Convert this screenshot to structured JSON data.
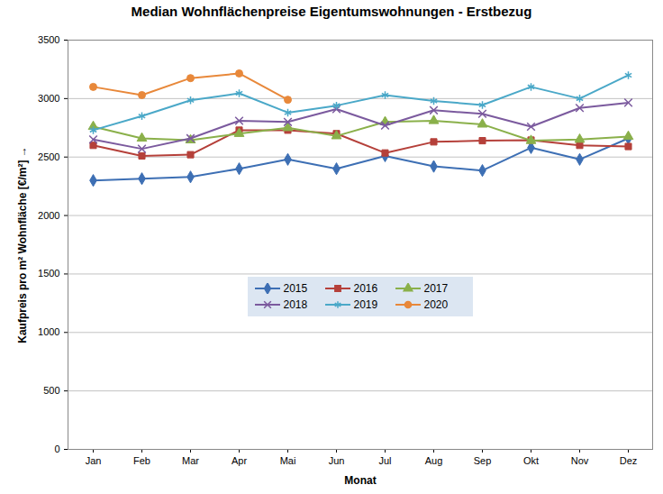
{
  "chart_data": {
    "type": "line",
    "title": "Median Wohnflächenpreise Eigentumswohnungen - Erstbezug",
    "x_label": "Monat",
    "y_label": "Kaufpreis pro m² Wohnfläche [€/m²]",
    "categories": [
      "Jan",
      "Feb",
      "Mar",
      "Apr",
      "Mai",
      "Jun",
      "Jul",
      "Aug",
      "Sep",
      "Okt",
      "Nov",
      "Dez"
    ],
    "series": [
      {
        "name": "2015",
        "color": "#3d6fb4",
        "marker": "diamond",
        "values": [
          2300,
          2315,
          2330,
          2400,
          2480,
          2400,
          2510,
          2420,
          2385,
          2580,
          2480,
          2660
        ]
      },
      {
        "name": "2016",
        "color": "#b5403a",
        "marker": "square",
        "values": [
          2600,
          2510,
          2520,
          2730,
          2730,
          2700,
          2535,
          2630,
          2640,
          2645,
          2600,
          2590
        ]
      },
      {
        "name": "2017",
        "color": "#8ab04a",
        "marker": "triangle",
        "values": [
          2760,
          2660,
          2645,
          2700,
          2750,
          2680,
          2800,
          2810,
          2780,
          2640,
          2650,
          2675
        ]
      },
      {
        "name": "2018",
        "color": "#7b5a9e",
        "marker": "x",
        "values": [
          2650,
          2570,
          2660,
          2810,
          2800,
          2910,
          2770,
          2900,
          2870,
          2760,
          2920,
          2965
        ]
      },
      {
        "name": "2019",
        "color": "#4aa8c8",
        "marker": "asterisk",
        "values": [
          2730,
          2850,
          2985,
          3045,
          2880,
          2940,
          3030,
          2980,
          2945,
          3100,
          3000,
          3200
        ]
      },
      {
        "name": "2020",
        "color": "#e8883a",
        "marker": "circle",
        "values": [
          3100,
          3030,
          3175,
          3215,
          2990,
          null,
          null,
          null,
          null,
          null,
          null,
          null
        ]
      }
    ],
    "ylim": [
      0,
      3500
    ],
    "yticks": [
      0,
      500,
      1000,
      1500,
      2000,
      2500,
      3000,
      3500
    ],
    "grid": true,
    "legend": "center"
  }
}
